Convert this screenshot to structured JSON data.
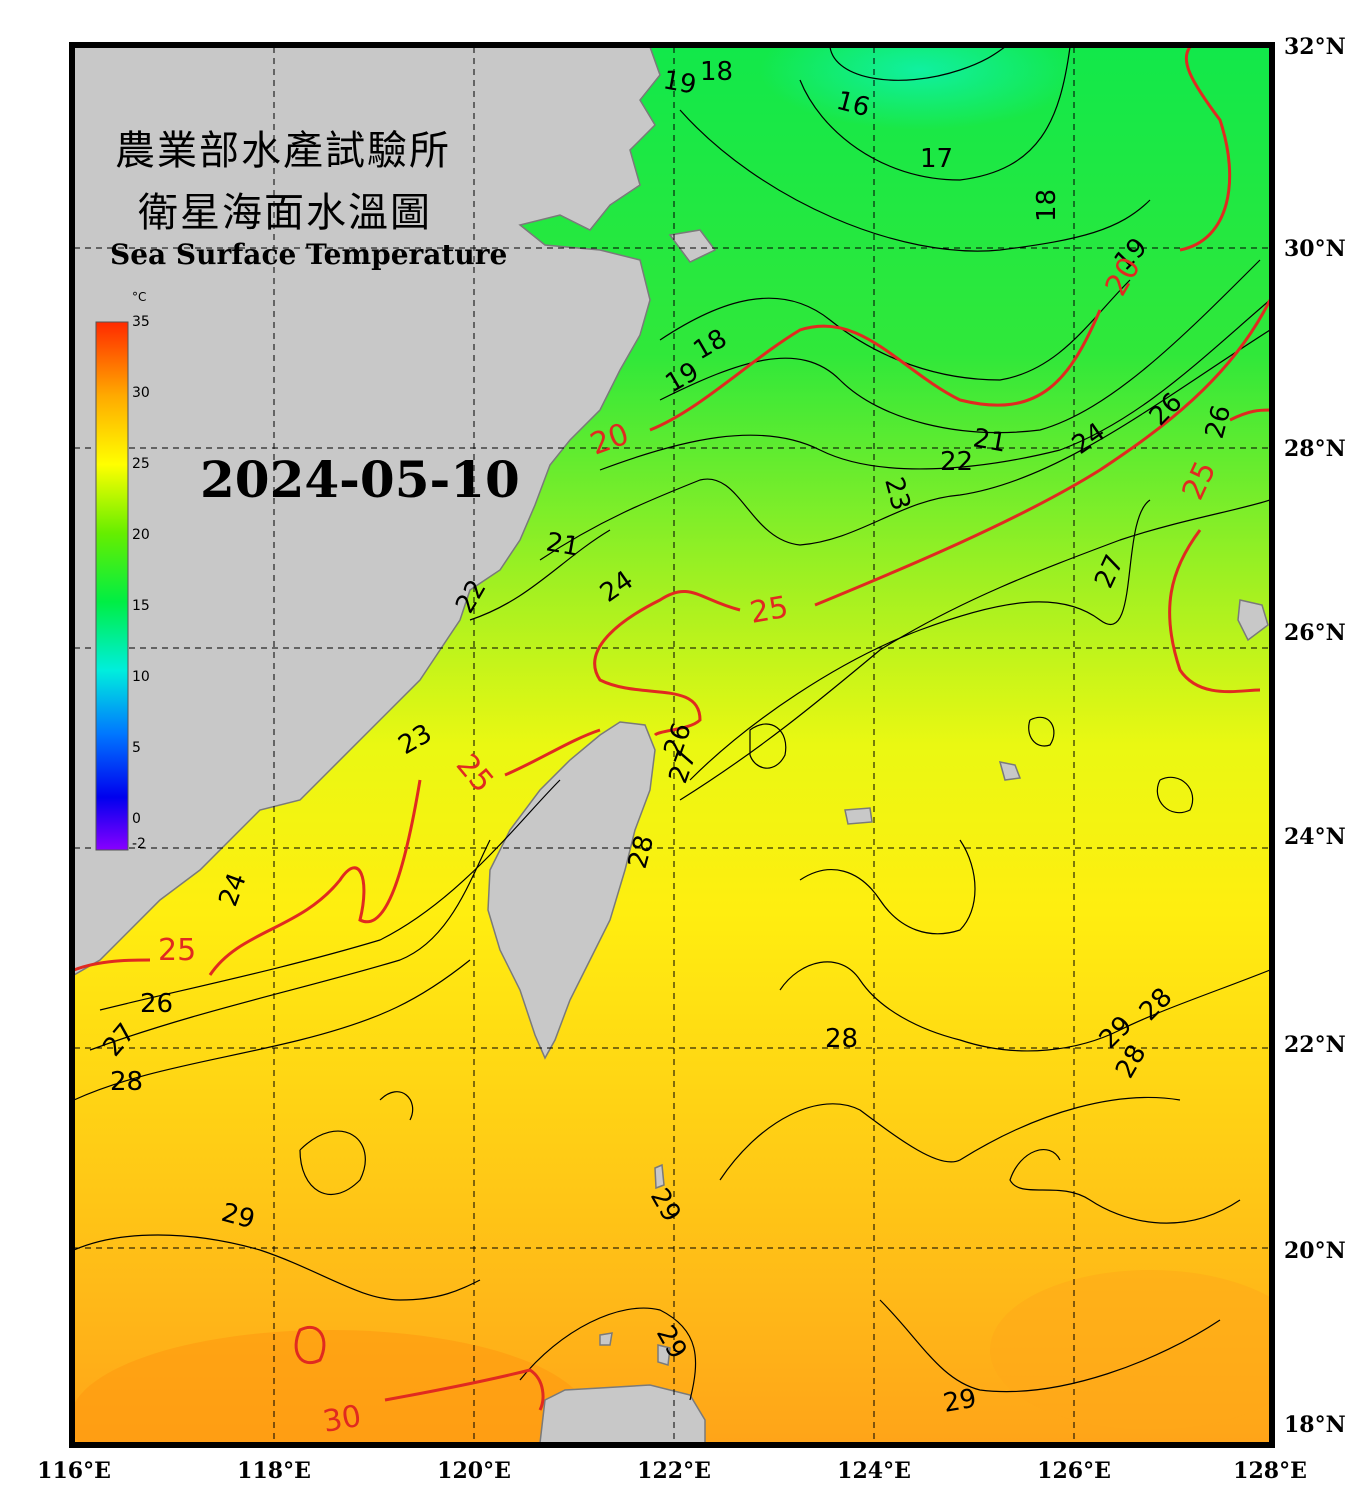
{
  "title": {
    "line1": "農業部水產試驗所",
    "line2": "衛星海面水溫圖",
    "english": "Sea Surface Temperature"
  },
  "date": "2024-05-10",
  "colorbar": {
    "unit": "°C",
    "ticks": [
      "35",
      "30",
      "25",
      "20",
      "15",
      "10",
      "5",
      "0",
      "-2"
    ]
  },
  "axes": {
    "x_ticks": [
      "116°E",
      "118°E",
      "120°E",
      "122°E",
      "124°E",
      "126°E",
      "128°E"
    ],
    "y_ticks": [
      "32°N",
      "30°N",
      "28°N",
      "26°N",
      "24°N",
      "22°N",
      "20°N",
      "18°N"
    ]
  },
  "colors": {
    "land": "#c8c8c8",
    "coast": "#7a7a7a",
    "contour_major": "#e02a20",
    "frame": "#000000"
  },
  "contour_labels": {
    "black": [
      "16",
      "17",
      "18",
      "18",
      "18",
      "19",
      "19",
      "19",
      "21",
      "21",
      "22",
      "22",
      "23",
      "23",
      "24",
      "24",
      "24",
      "26",
      "26",
      "26",
      "26",
      "27",
      "27",
      "27",
      "28",
      "28",
      "28",
      "28",
      "28",
      "29",
      "29",
      "29",
      "29",
      "29"
    ],
    "red": [
      "20",
      "20",
      "25",
      "25",
      "25",
      "25",
      "30"
    ]
  }
}
